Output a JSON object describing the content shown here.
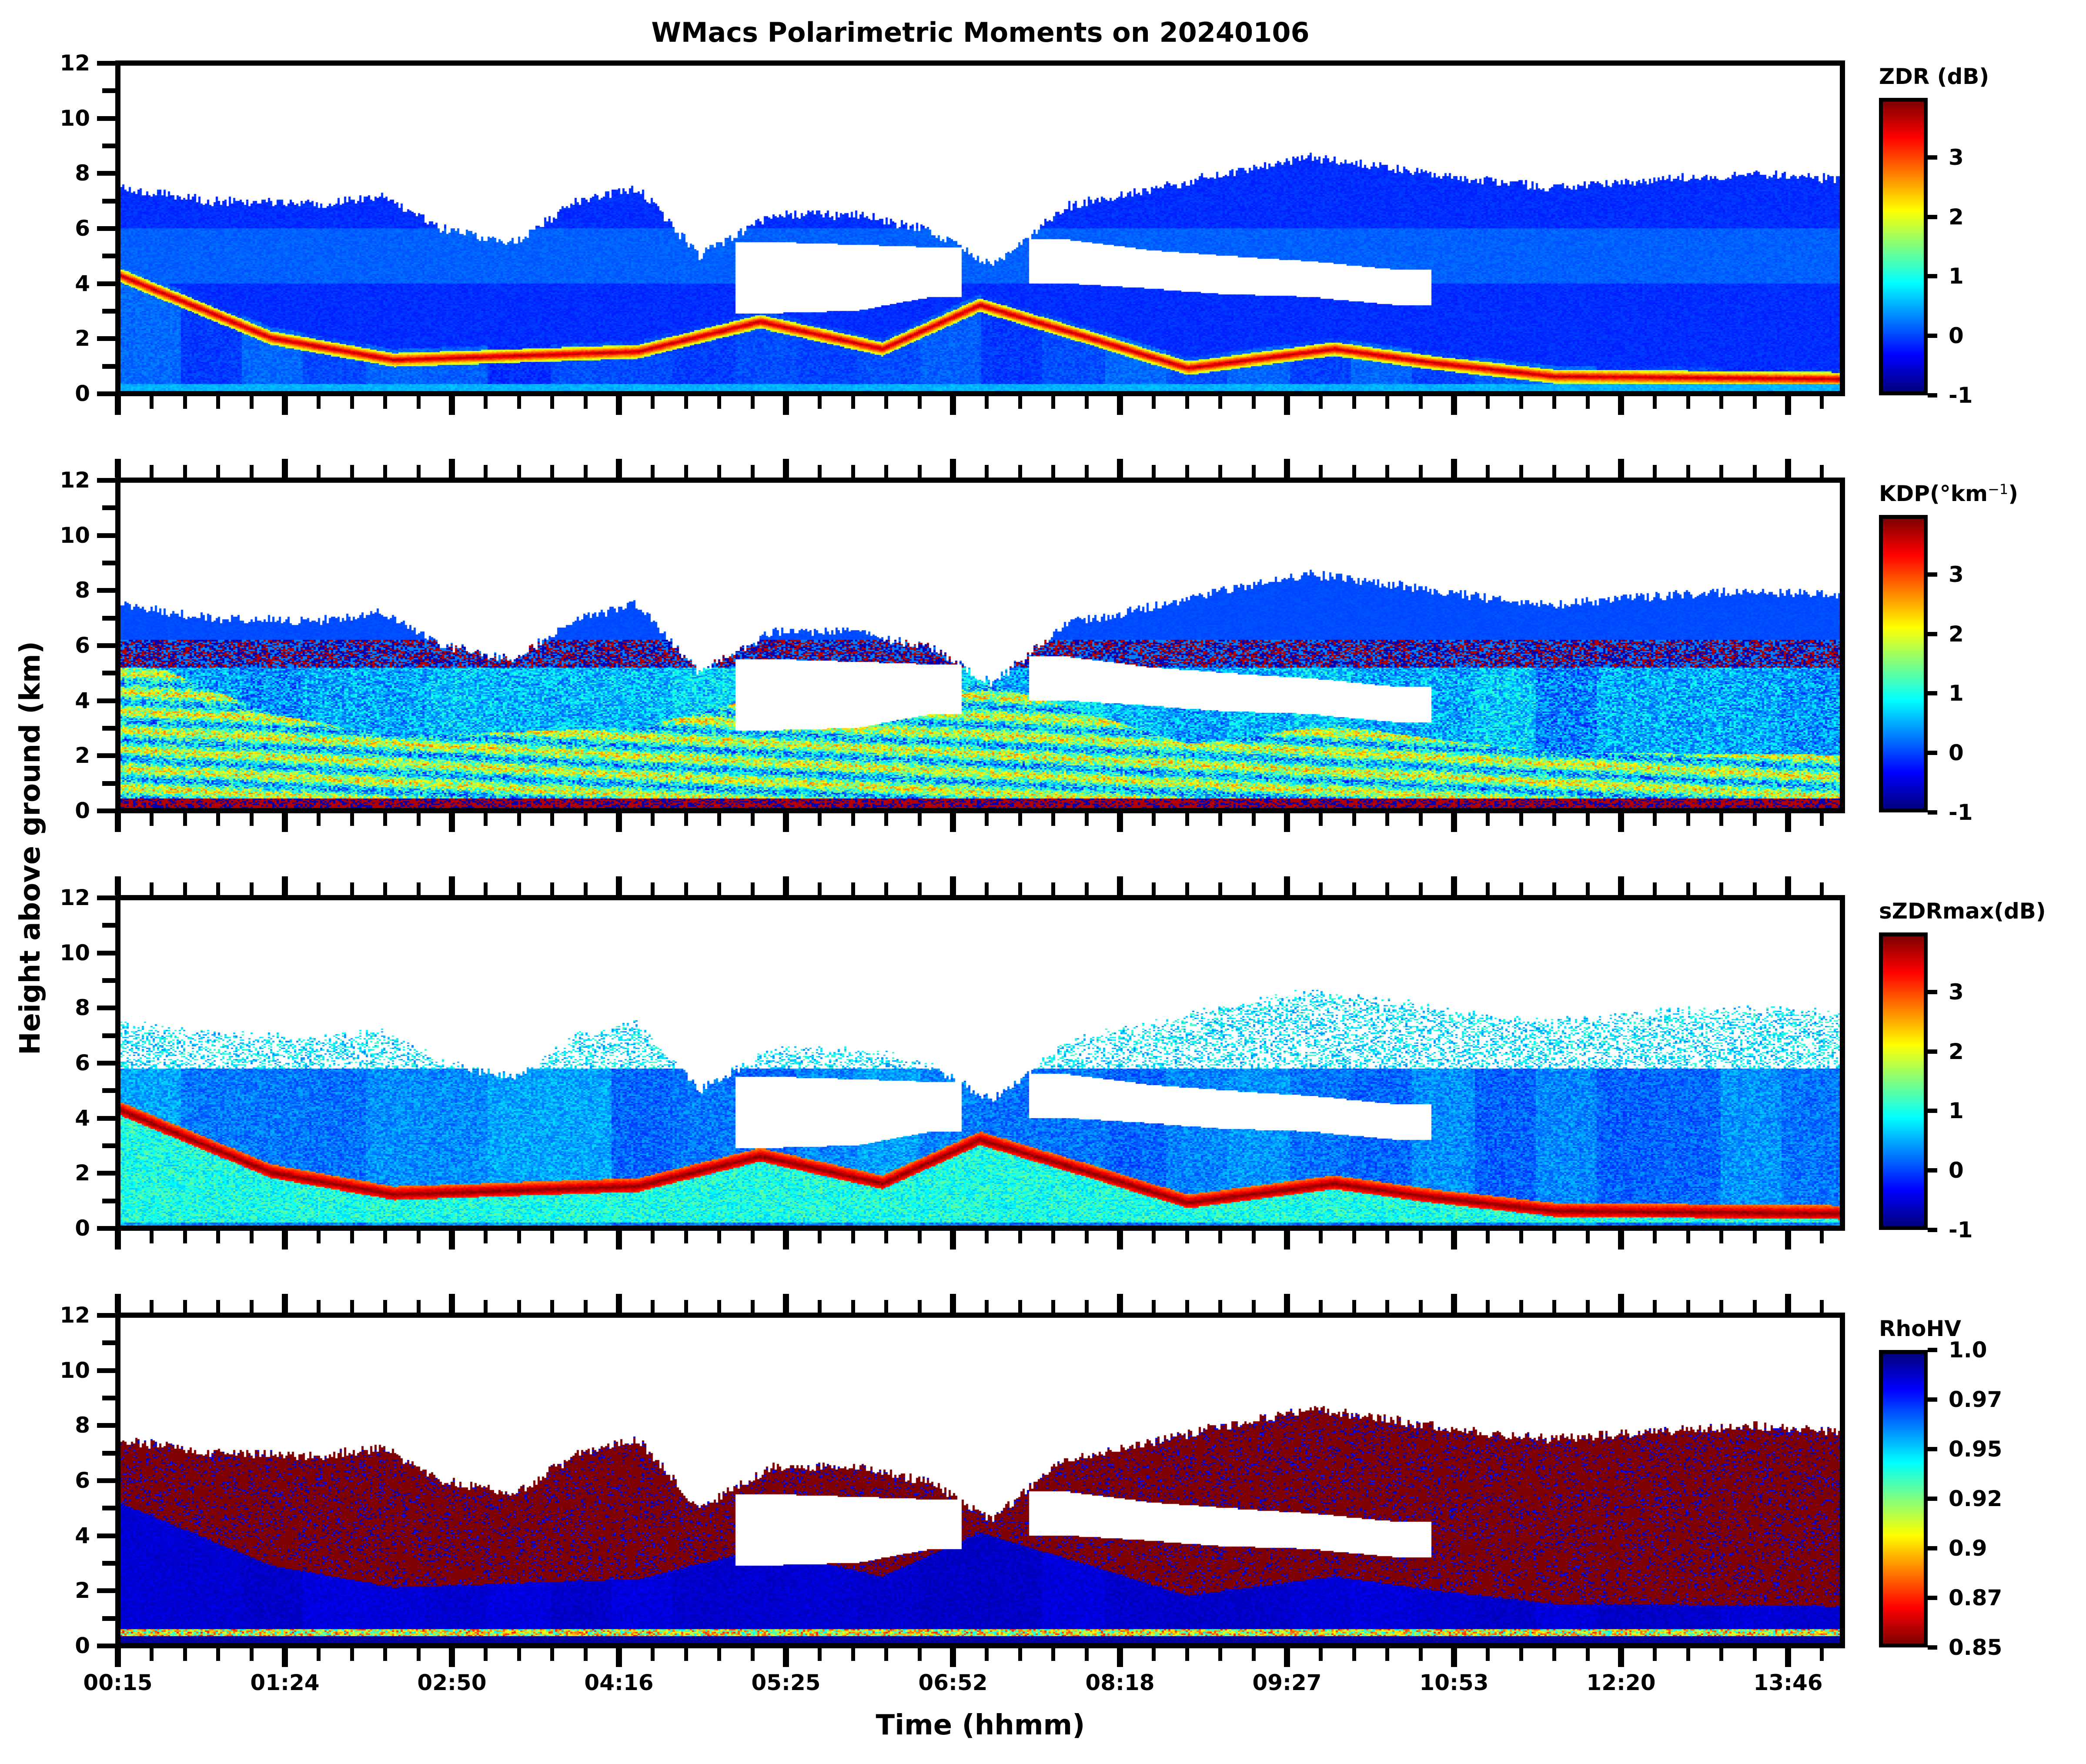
{
  "figure": {
    "title": "WMacs Polarimetric Moments on 20240106",
    "xlabel": "Time (hhmm)",
    "ylabel": "Height above ground (km)"
  },
  "chart_data": {
    "type": "heatmap",
    "x_ticks": [
      "00:15",
      "01:24",
      "02:50",
      "04:16",
      "05:25",
      "06:52",
      "08:18",
      "09:27",
      "10:53",
      "12:20",
      "13:46"
    ],
    "x_range_hours": [
      0.25,
      14.35
    ],
    "y_ticks": [
      "0",
      "2",
      "4",
      "6",
      "8",
      "10",
      "12"
    ],
    "ylim": [
      0,
      12
    ],
    "colormap": "jet",
    "panels": [
      {
        "name": "ZDR",
        "cbar_label": "ZDR (dB)",
        "cbar_ticks": [
          "-1",
          "0",
          "1",
          "2",
          "3"
        ],
        "vmin": -1,
        "vmax": 4,
        "typical_value": -0.2
      },
      {
        "name": "KDP",
        "cbar_label": "KDP(°km",
        "cbar_label_sup": "−1",
        "cbar_label_end": ")",
        "cbar_ticks": [
          "-1",
          "0",
          "1",
          "2",
          "3"
        ],
        "vmin": -1,
        "vmax": 4,
        "typical_value": 0.0
      },
      {
        "name": "sZDRmax",
        "cbar_label": "sZDRmax(dB)",
        "cbar_ticks": [
          "-1",
          "0",
          "1",
          "2",
          "3"
        ],
        "vmin": -1,
        "vmax": 4,
        "typical_value": 0.4
      },
      {
        "name": "RhoHV",
        "cbar_label": "RhoHV",
        "cbar_ticks": [
          "1.0",
          "0.97",
          "0.95",
          "0.92",
          "0.9",
          "0.87",
          "0.85"
        ],
        "vmin": 0.85,
        "vmax": 1.0,
        "reversed": true,
        "typical_value": 0.85
      }
    ],
    "echo_envelope": [
      {
        "t": 0.25,
        "top": 7.5,
        "gap_lo": null,
        "gap_hi": null
      },
      {
        "t": 1.0,
        "top": 7.0,
        "gap_lo": null,
        "gap_hi": null
      },
      {
        "t": 1.9,
        "top": 6.9,
        "gap_lo": null,
        "gap_hi": null
      },
      {
        "t": 2.4,
        "top": 7.2,
        "gap_lo": null,
        "gap_hi": null
      },
      {
        "t": 2.9,
        "top": 6.0,
        "gap_lo": null,
        "gap_hi": null
      },
      {
        "t": 3.5,
        "top": 5.5,
        "gap_lo": null,
        "gap_hi": null
      },
      {
        "t": 4.0,
        "top": 7.0,
        "gap_lo": null,
        "gap_hi": null
      },
      {
        "t": 4.5,
        "top": 7.5,
        "gap_lo": null,
        "gap_hi": null
      },
      {
        "t": 5.0,
        "top": 5.0,
        "gap_lo": null,
        "gap_hi": null
      },
      {
        "t": 5.6,
        "top": 6.5,
        "gap_lo": 2.9,
        "gap_hi": 5.5
      },
      {
        "t": 6.3,
        "top": 6.5,
        "gap_lo": 3.0,
        "gap_hi": 5.4
      },
      {
        "t": 6.9,
        "top": 5.9,
        "gap_lo": 3.5,
        "gap_hi": 5.3
      },
      {
        "t": 7.4,
        "top": 4.6,
        "gap_lo": null,
        "gap_hi": null
      },
      {
        "t": 8.0,
        "top": 6.8,
        "gap_lo": 4.0,
        "gap_hi": 5.6
      },
      {
        "t": 8.7,
        "top": 7.4,
        "gap_lo": 3.8,
        "gap_hi": 5.2
      },
      {
        "t": 9.3,
        "top": 8.0,
        "gap_lo": 3.6,
        "gap_hi": 5.0
      },
      {
        "t": 10.0,
        "top": 8.6,
        "gap_lo": 3.5,
        "gap_hi": 4.8
      },
      {
        "t": 10.7,
        "top": 8.2,
        "gap_lo": 3.2,
        "gap_hi": 4.5
      },
      {
        "t": 11.3,
        "top": 7.8,
        "gap_lo": null,
        "gap_hi": null
      },
      {
        "t": 12.0,
        "top": 7.5,
        "gap_lo": null,
        "gap_hi": null
      },
      {
        "t": 12.8,
        "top": 7.8,
        "gap_lo": null,
        "gap_hi": null
      },
      {
        "t": 13.6,
        "top": 8.0,
        "gap_lo": null,
        "gap_hi": null
      },
      {
        "t": 14.35,
        "top": 7.8,
        "gap_lo": null,
        "gap_hi": null
      }
    ],
    "melting_layer": [
      {
        "t": 0.25,
        "h": 4.3
      },
      {
        "t": 1.5,
        "h": 2.0
      },
      {
        "t": 2.5,
        "h": 1.2
      },
      {
        "t": 4.5,
        "h": 1.5
      },
      {
        "t": 5.5,
        "h": 2.6
      },
      {
        "t": 6.5,
        "h": 1.6
      },
      {
        "t": 7.3,
        "h": 3.2
      },
      {
        "t": 8.2,
        "h": 2.0
      },
      {
        "t": 9.0,
        "h": 0.9
      },
      {
        "t": 10.2,
        "h": 1.6
      },
      {
        "t": 11.0,
        "h": 1.1
      },
      {
        "t": 12.0,
        "h": 0.6
      },
      {
        "t": 14.35,
        "h": 0.5
      }
    ]
  },
  "colors": {
    "jet": [
      "#00007f",
      "#0000ff",
      "#007fff",
      "#00ffff",
      "#7fff7f",
      "#ffff00",
      "#ff7f00",
      "#ff0000",
      "#7f0000"
    ]
  }
}
